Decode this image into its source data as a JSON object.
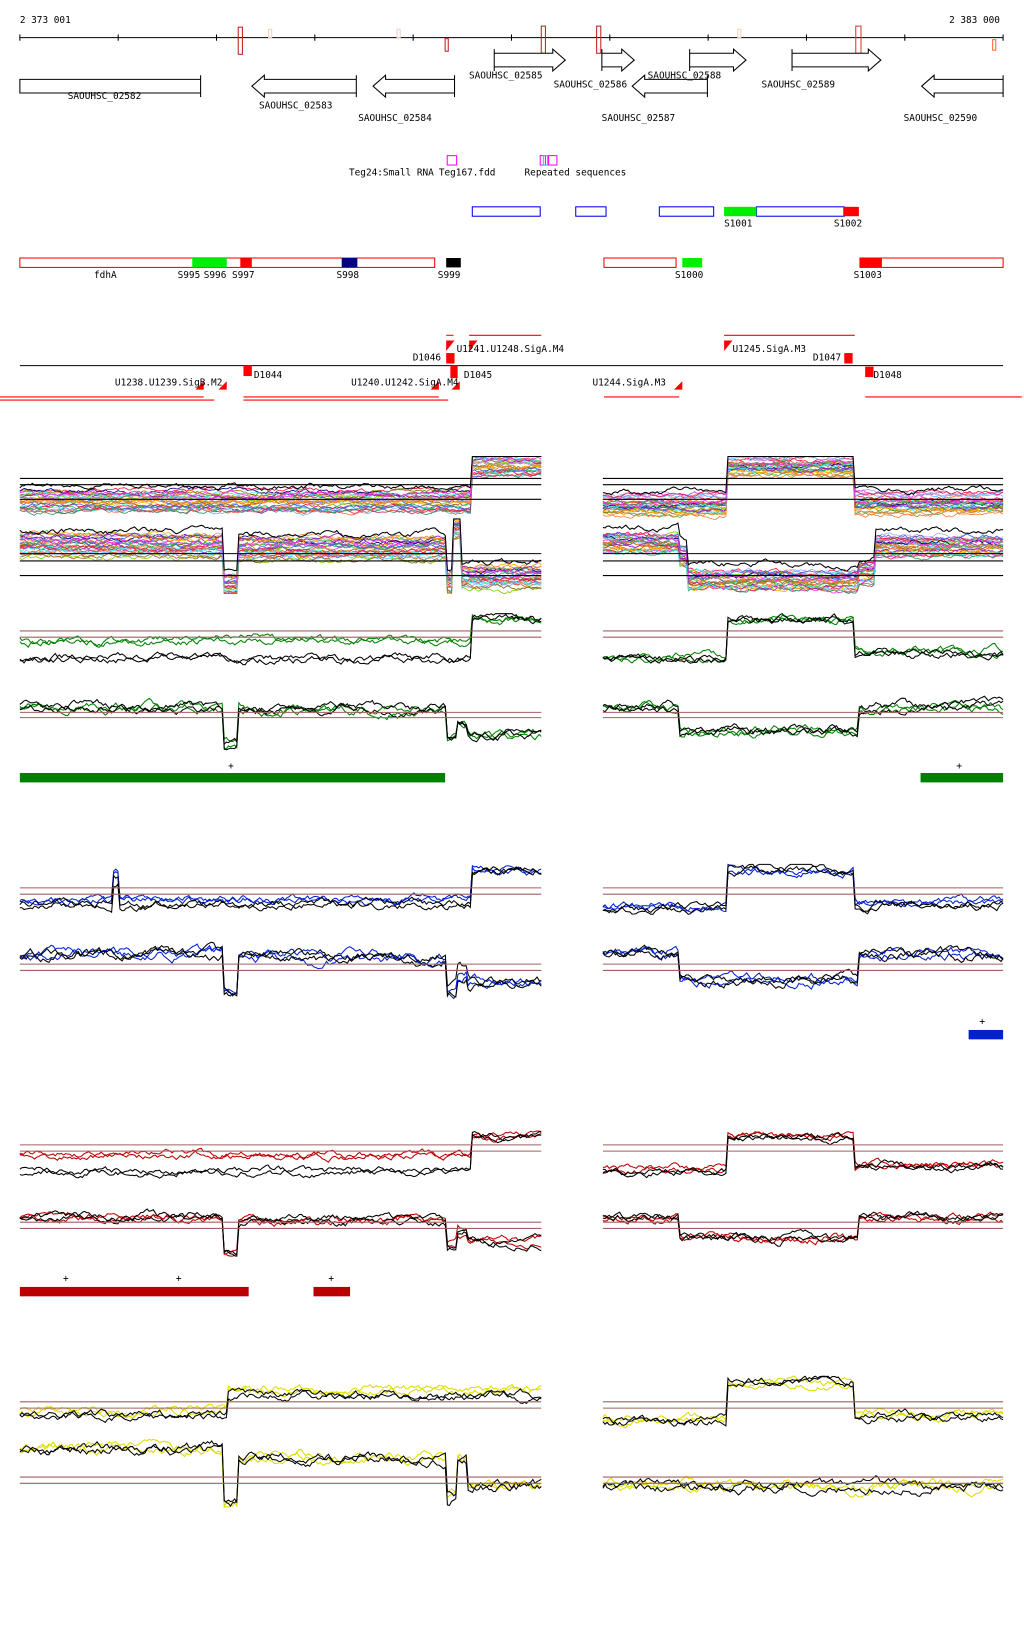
{
  "ruler": {
    "start_label": "2 373 001",
    "end_label": "2 383 000"
  },
  "genes": [
    {
      "name": "SAOUHSC_02582",
      "strand": "none"
    },
    {
      "name": "SAOUHSC_02583",
      "strand": "-"
    },
    {
      "name": "SAOUHSC_02584",
      "strand": "-"
    },
    {
      "name": "SAOUHSC_02585",
      "strand": "+"
    },
    {
      "name": "SAOUHSC_02586",
      "strand": "+"
    },
    {
      "name": "SAOUHSC_02587",
      "strand": "-"
    },
    {
      "name": "SAOUHSC_02588",
      "strand": "+"
    },
    {
      "name": "SAOUHSC_02589",
      "strand": "+"
    },
    {
      "name": "SAOUHSC_02590",
      "strand": "-"
    }
  ],
  "features": {
    "teg24": "Teg24:Small RNA",
    "teg167": "Teg167.fdd",
    "repeats": "Repeated sequences"
  },
  "segments_top": [
    "S1001",
    "S1002"
  ],
  "segments_bottom": {
    "fdha": "fdhA",
    "s995": "S995",
    "s996": "S996",
    "s997": "S997",
    "s998": "S998",
    "s999": "S999",
    "s1000": "S1000",
    "s1003": "S1003"
  },
  "promoters": {
    "d1046": "D1046",
    "u1241": "U1241.U1248.SigA.M4",
    "u1245": "U1245.SigA.M3",
    "d1047": "D1047",
    "d1044": "D1044",
    "d1045": "D1045",
    "d1048": "D1048",
    "u1238": "U1238.U1239.SigB.M2",
    "u1240": "U1240.U1242.SigA.M4",
    "u1244": "U1244.SigA.M3"
  },
  "plus_marks": [
    "+",
    "+",
    "+",
    "+",
    "+",
    "+"
  ],
  "colors": {
    "green": "#008000",
    "blue": "#0022cc",
    "red": "#bb0000",
    "yellow": "#dddd00",
    "ref_line": "#a06060"
  }
}
